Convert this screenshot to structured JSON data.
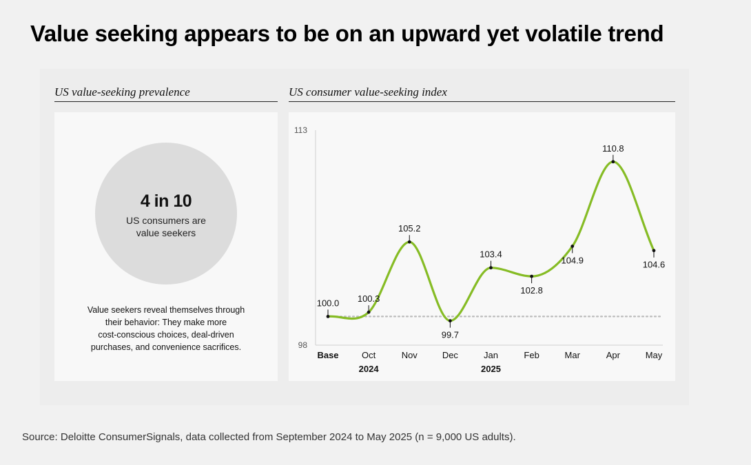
{
  "title": "Value seeking appears to be on an upward yet volatile trend",
  "left_panel": {
    "heading": "US value-seeking prevalence",
    "stat": "4 in 10",
    "stat_caption_lines": [
      "US consumers are",
      "value seekers"
    ],
    "description_lines": [
      "Value seekers reveal themselves through",
      "their behavior: They make more",
      "cost-conscious choices, deal-driven",
      "purchases, and convenience sacrifices."
    ]
  },
  "right_panel": {
    "heading": "US consumer value-seeking index"
  },
  "chart_data": {
    "type": "line",
    "title": "US consumer value-seeking index",
    "categories": [
      "Base",
      "Oct",
      "Nov",
      "Dec",
      "Jan",
      "Feb",
      "Mar",
      "Apr",
      "May"
    ],
    "year_labels": [
      {
        "category": "Oct",
        "label": "2024"
      },
      {
        "category": "Jan",
        "label": "2025"
      }
    ],
    "series": [
      {
        "name": "Value-seeking index",
        "values": [
          100.0,
          100.3,
          105.2,
          99.7,
          103.4,
          102.8,
          104.9,
          110.8,
          104.6
        ],
        "color": "#86bc25"
      }
    ],
    "value_labels": [
      "100.0",
      "100.3",
      "105.2",
      "99.7",
      "103.4",
      "102.8",
      "104.9",
      "110.8",
      "104.6"
    ],
    "label_positions": [
      "above",
      "above",
      "above",
      "below",
      "above",
      "below",
      "below",
      "above",
      "below"
    ],
    "baseline": 100,
    "baseline_color": "#bbbbbb",
    "ylim": [
      98,
      113
    ],
    "yticks": [
      "98",
      "113"
    ],
    "xlabel": "",
    "ylabel": "",
    "grid": false
  },
  "source": "Source: Deloitte ConsumerSignals, data collected from September 2024 to May 2025 (n = 9,000 US adults)."
}
